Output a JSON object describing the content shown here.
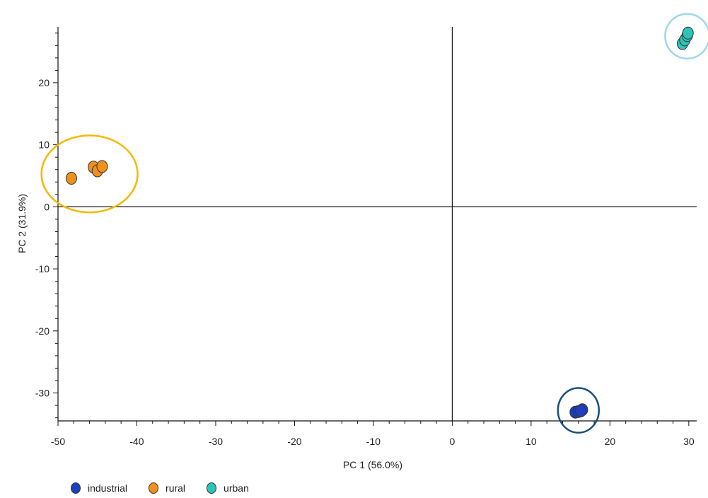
{
  "chart_data": {
    "type": "scatter",
    "title": "",
    "xlabel": "PC 1 (56.0%)",
    "ylabel": "PC 2 (31.9%)",
    "xlim": [
      -50,
      31
    ],
    "ylim": [
      -34.5,
      29
    ],
    "xticks": [
      -50,
      -40,
      -30,
      -20,
      -10,
      0,
      10,
      20,
      30
    ],
    "yticks": [
      20,
      10,
      0,
      -10,
      -20,
      -30
    ],
    "x_tick_labels": [
      "-50",
      "-40",
      "-30",
      "-20",
      "-10",
      "0",
      "10",
      "20",
      "30"
    ],
    "y_tick_labels": [
      "20",
      "10",
      "0",
      "-10",
      "-20",
      "-30"
    ],
    "grid": false,
    "legend_position": "bottom-left",
    "series": [
      {
        "name": "industrial",
        "color": "#1f3fbf",
        "points": [
          [
            15.6,
            -33.1
          ],
          [
            16.0,
            -33.0
          ],
          [
            16.5,
            -32.7
          ],
          [
            16.3,
            -32.9
          ]
        ],
        "ellipse": {
          "cx": 16.0,
          "cy": -32.8,
          "rx": 2.6,
          "ry": 3.6,
          "color": "#1a4f7a"
        }
      },
      {
        "name": "rural",
        "color": "#f0901a",
        "points": [
          [
            -48.3,
            4.6
          ],
          [
            -45.5,
            6.4
          ],
          [
            -45.0,
            5.8
          ],
          [
            -44.4,
            6.5
          ]
        ],
        "ellipse": {
          "cx": -46.0,
          "cy": 5.3,
          "rx": 6.1,
          "ry": 6.2,
          "color": "#f5b800"
        }
      },
      {
        "name": "urban",
        "color": "#2cc4b8",
        "points": [
          [
            29.2,
            26.3
          ],
          [
            29.5,
            26.9
          ],
          [
            29.8,
            27.6
          ],
          [
            29.9,
            28.0
          ]
        ],
        "ellipse": {
          "cx": 29.8,
          "cy": 27.5,
          "rx": 2.8,
          "ry": 3.6,
          "color": "#9fd8e8"
        }
      }
    ]
  }
}
